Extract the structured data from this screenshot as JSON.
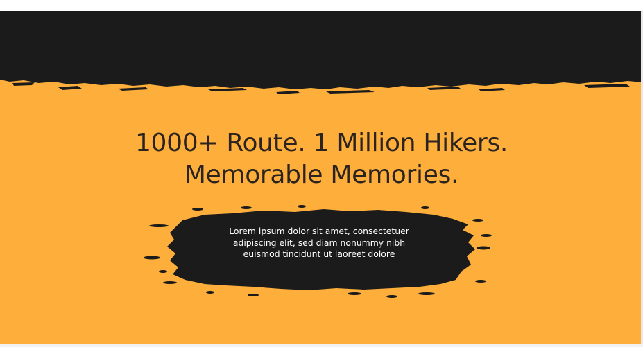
{
  "hero": {
    "headline_line1": "1000+ Route. 1 Million Hikers.",
    "headline_line2": "Memorable Memories.",
    "body_line1": "Lorem ipsum dolor sit amet, consectetuer",
    "body_line2": "adipiscing elit, sed diam nonummy nibh",
    "body_line3": "euismod tincidunt ut laoreet dolore"
  },
  "colors": {
    "background": "#fdae3b",
    "dark": "#1b1b1b",
    "headline_text": "#2b2320",
    "body_text": "#ffffff"
  },
  "decorations": {
    "top_band": "torn-paper-dark-band",
    "text_backdrop": "ink-splat-brush-stroke"
  }
}
